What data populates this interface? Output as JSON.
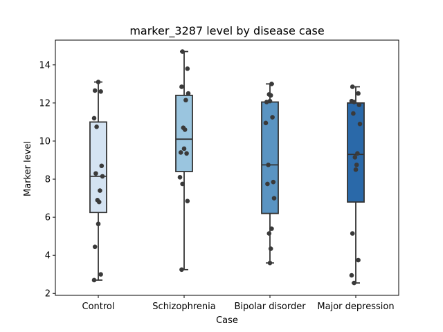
{
  "chart_data": {
    "type": "box",
    "title": "marker_3287 level by disease case",
    "xlabel": "Case",
    "ylabel": "Marker level",
    "ylim": [
      1.9,
      15.3
    ],
    "yticks": [
      2,
      4,
      6,
      8,
      10,
      12,
      14
    ],
    "ytick_labels": [
      "2",
      "4",
      "6",
      "8",
      "10",
      "12",
      "14"
    ],
    "grid": false,
    "categories": [
      "Control",
      "Schizophrenia",
      "Bipolar disorder",
      "Major depression"
    ],
    "series": [
      {
        "category": "Control",
        "color": "#d4e3f2",
        "box": {
          "whisker_low": 2.7,
          "q1": 6.25,
          "median": 8.15,
          "q3": 11.0,
          "whisker_high": 13.1
        },
        "points": [
          13.1,
          12.65,
          12.6,
          11.2,
          10.75,
          8.7,
          8.3,
          8.15,
          7.4,
          6.9,
          6.8,
          5.65,
          4.45,
          3.0,
          2.7
        ]
      },
      {
        "category": "Schizophrenia",
        "color": "#9ac5df",
        "box": {
          "whisker_low": 3.25,
          "q1": 8.4,
          "median": 10.1,
          "q3": 12.4,
          "whisker_high": 14.7
        },
        "points": [
          14.7,
          13.8,
          12.85,
          12.5,
          12.15,
          10.7,
          10.6,
          9.6,
          9.4,
          9.35,
          8.1,
          7.75,
          6.85,
          3.25
        ]
      },
      {
        "category": "Bipolar disorder",
        "color": "#5a94c2",
        "box": {
          "whisker_low": 3.6,
          "q1": 6.2,
          "median": 8.75,
          "q3": 12.05,
          "whisker_high": 13.0
        },
        "points": [
          13.0,
          12.45,
          12.4,
          12.1,
          12.05,
          11.25,
          10.95,
          8.75,
          7.85,
          7.75,
          7.0,
          5.4,
          5.15,
          4.35,
          3.6
        ]
      },
      {
        "category": "Major depression",
        "color": "#2a69a9",
        "box": {
          "whisker_low": 2.55,
          "q1": 6.8,
          "median": 9.3,
          "q3": 12.0,
          "whisker_high": 12.85
        },
        "points": [
          12.85,
          12.5,
          12.1,
          12.05,
          11.9,
          11.45,
          10.9,
          9.35,
          9.15,
          8.75,
          8.5,
          5.15,
          3.75,
          2.95,
          2.55
        ]
      }
    ]
  }
}
